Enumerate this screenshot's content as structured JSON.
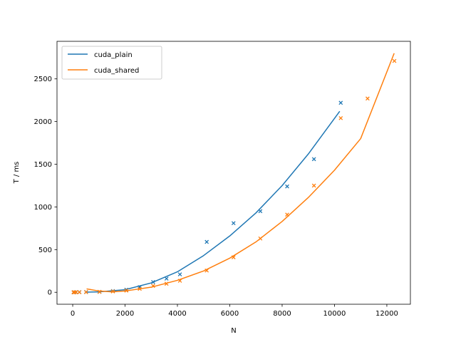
{
  "chart_data": {
    "type": "scatter",
    "xlabel": "N",
    "ylabel": "T / ms",
    "xlim": [
      -600,
      12900
    ],
    "ylim": [
      -140,
      2940
    ],
    "xticks": [
      0,
      2000,
      4000,
      6000,
      8000,
      10000,
      12000
    ],
    "yticks": [
      0,
      500,
      1000,
      1500,
      2000,
      2500
    ],
    "grid": false,
    "legend_position": "top-left",
    "series": [
      {
        "name": "cuda_plain",
        "color": "#1f77b4",
        "points": {
          "x": [
            32,
            64,
            128,
            256,
            512,
            1024,
            1536,
            2048,
            2560,
            3072,
            3584,
            4096,
            5120,
            6144,
            7168,
            8192,
            9216,
            10240
          ],
          "y": [
            0,
            0,
            1,
            2,
            3,
            5,
            15,
            30,
            60,
            120,
            160,
            210,
            590,
            810,
            950,
            1240,
            1560,
            2220
          ]
        },
        "fit": {
          "x": [
            550,
            1000,
            2000,
            3000,
            4000,
            5000,
            6000,
            7000,
            8000,
            9000,
            10200
          ],
          "y": [
            2,
            5,
            30,
            110,
            240,
            430,
            660,
            930,
            1250,
            1620,
            2120
          ]
        }
      },
      {
        "name": "cuda_shared",
        "color": "#ff7f0e",
        "points": {
          "x": [
            32,
            64,
            128,
            256,
            512,
            1024,
            1536,
            2048,
            2560,
            3072,
            3584,
            4096,
            5120,
            6144,
            7168,
            8192,
            9216,
            10240,
            11264,
            12288
          ],
          "y": [
            0,
            0,
            1,
            1,
            2,
            5,
            10,
            20,
            40,
            75,
            100,
            135,
            255,
            410,
            630,
            910,
            1250,
            2040,
            2270,
            2710
          ]
        },
        "fit": {
          "x": [
            530,
            1000,
            1500,
            2000,
            3000,
            4000,
            5000,
            6000,
            7000,
            8000,
            9000,
            10000,
            11000,
            12280
          ],
          "y": [
            40,
            15,
            5,
            15,
            60,
            140,
            250,
            400,
            590,
            830,
            1110,
            1430,
            1800,
            2800
          ]
        }
      }
    ]
  }
}
